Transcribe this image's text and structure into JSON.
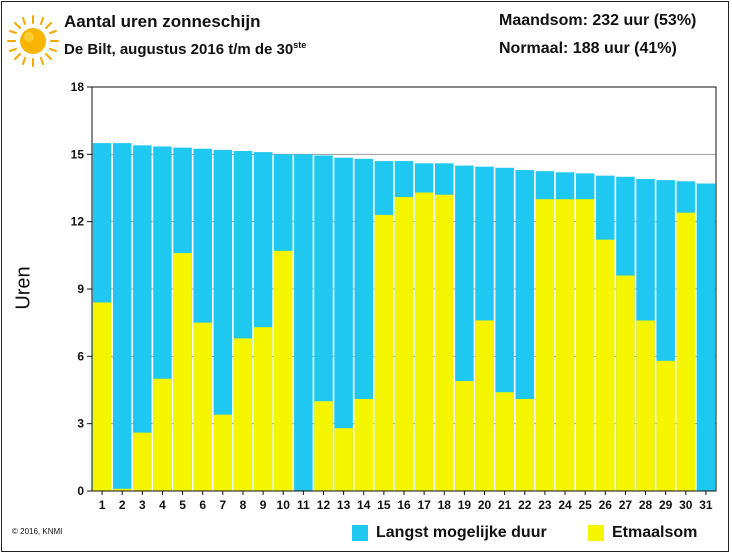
{
  "header": {
    "title": "Aantal uren zonneschijn",
    "subtitle_main": "De Bilt, augustus 2016 t/m de 30",
    "subtitle_sup": "ste",
    "maandsom": "Maandsom: 232 uur (53%)",
    "normaal": "Normaal: 188 uur (41%)"
  },
  "copyright": "© 2016, KNMI",
  "chart_data": {
    "type": "bar",
    "xlabel": "",
    "ylabel": "Uren",
    "ylim": [
      0,
      18
    ],
    "yticks": [
      0,
      3,
      6,
      9,
      12,
      15,
      18
    ],
    "grid": true,
    "legend_position": "bottom-right",
    "categories": [
      "1",
      "2",
      "3",
      "4",
      "5",
      "6",
      "7",
      "8",
      "9",
      "10",
      "11",
      "12",
      "13",
      "14",
      "15",
      "16",
      "17",
      "18",
      "19",
      "20",
      "21",
      "22",
      "23",
      "24",
      "25",
      "26",
      "27",
      "28",
      "29",
      "30",
      "31"
    ],
    "series": [
      {
        "name": "Langst mogelijke duur",
        "color": "#1ec8f0",
        "values": [
          15.5,
          15.5,
          15.4,
          15.35,
          15.3,
          15.25,
          15.2,
          15.15,
          15.1,
          15.0,
          15.0,
          14.95,
          14.85,
          14.8,
          14.7,
          14.7,
          14.6,
          14.6,
          14.5,
          14.45,
          14.4,
          14.3,
          14.25,
          14.2,
          14.15,
          14.05,
          14.0,
          13.9,
          13.85,
          13.8,
          13.7
        ]
      },
      {
        "name": "Etmaalsom",
        "color": "#f5f500",
        "values": [
          8.4,
          0.1,
          2.6,
          5.0,
          10.6,
          7.5,
          3.4,
          6.8,
          7.3,
          10.7,
          0.0,
          4.0,
          2.8,
          4.1,
          12.3,
          13.1,
          13.3,
          13.2,
          4.9,
          7.6,
          4.4,
          4.1,
          13.0,
          13.0,
          13.0,
          11.2,
          9.6,
          7.6,
          5.8,
          12.4,
          0
        ]
      }
    ]
  },
  "icons": {
    "sun": "sun-icon"
  }
}
